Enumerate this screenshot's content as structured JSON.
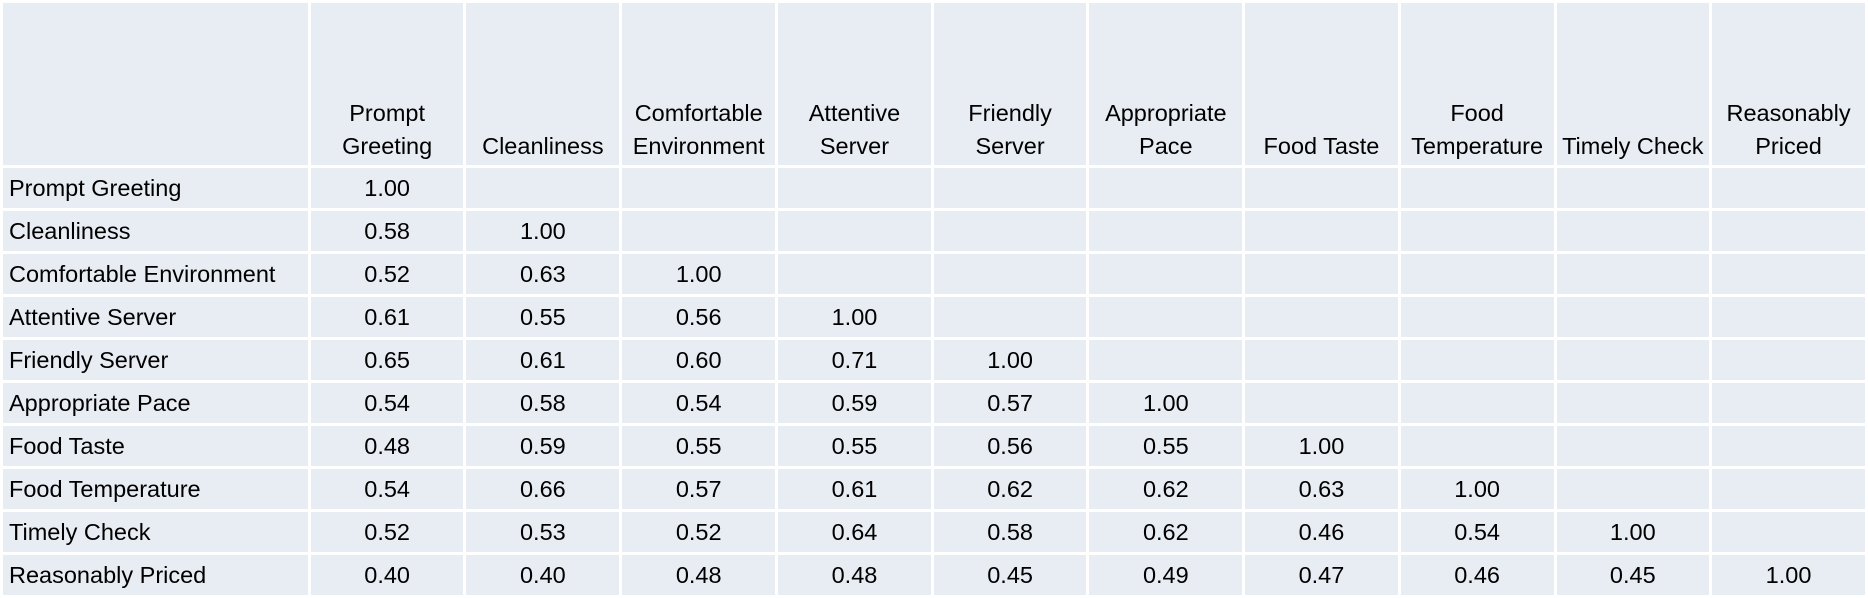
{
  "chart_data": {
    "type": "table",
    "columns": [
      "Prompt Greeting",
      "Cleanliness",
      "Comfortable Environment",
      "Attentive Server",
      "Friendly Server",
      "Appropriate Pace",
      "Food Taste",
      "Food Temperature",
      "Timely Check",
      "Reasonably Priced"
    ],
    "column_headers": [
      [
        "Prompt",
        "Greeting"
      ],
      [
        "Cleanliness"
      ],
      [
        "Comfortable",
        "Environment"
      ],
      [
        "Attentive",
        "Server"
      ],
      [
        "Friendly",
        "Server"
      ],
      [
        "Appropriate",
        "Pace"
      ],
      [
        "Food Taste"
      ],
      [
        "Food",
        "Temperature"
      ],
      [
        "Timely Check"
      ],
      [
        "Reasonably",
        "Priced"
      ]
    ],
    "rows": [
      "Prompt Greeting",
      "Cleanliness",
      "Comfortable Environment",
      "Attentive Server",
      "Friendly Server",
      "Appropriate Pace",
      "Food Taste",
      "Food Temperature",
      "Timely Check",
      "Reasonably Priced"
    ],
    "values": [
      [
        "1.00"
      ],
      [
        "0.58",
        "1.00"
      ],
      [
        "0.52",
        "0.63",
        "1.00"
      ],
      [
        "0.61",
        "0.55",
        "0.56",
        "1.00"
      ],
      [
        "0.65",
        "0.61",
        "0.60",
        "0.71",
        "1.00"
      ],
      [
        "0.54",
        "0.58",
        "0.54",
        "0.59",
        "0.57",
        "1.00"
      ],
      [
        "0.48",
        "0.59",
        "0.55",
        "0.55",
        "0.56",
        "0.55",
        "1.00"
      ],
      [
        "0.54",
        "0.66",
        "0.57",
        "0.61",
        "0.62",
        "0.62",
        "0.63",
        "1.00"
      ],
      [
        "0.52",
        "0.53",
        "0.52",
        "0.64",
        "0.58",
        "0.62",
        "0.46",
        "0.54",
        "1.00"
      ],
      [
        "0.40",
        "0.40",
        "0.48",
        "0.48",
        "0.45",
        "0.49",
        "0.47",
        "0.46",
        "0.45",
        "1.00"
      ]
    ],
    "layout": "lower-triangular"
  },
  "colors": {
    "cell_background": "#e8ecf3",
    "gridline": "#ffffff",
    "text": "#000000"
  }
}
